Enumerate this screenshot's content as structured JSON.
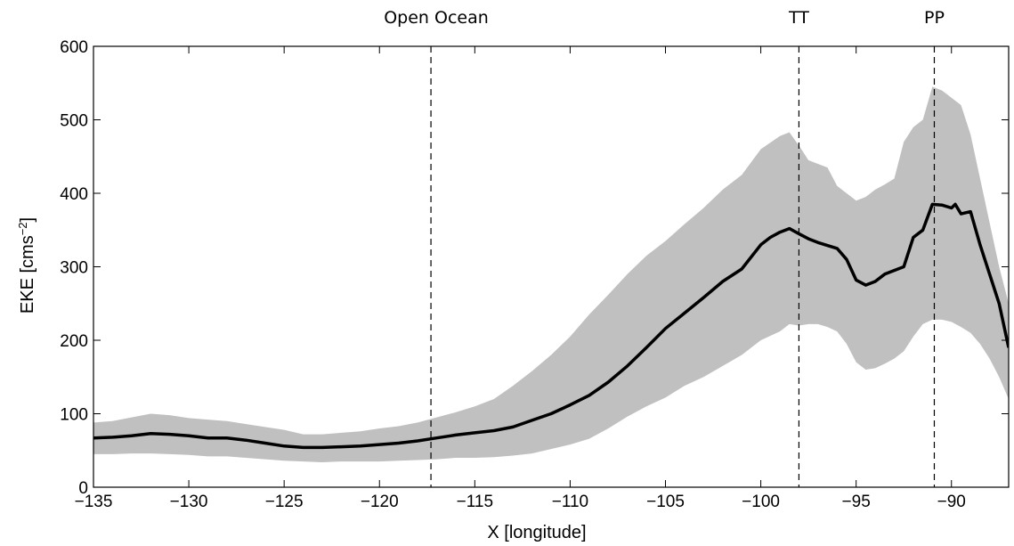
{
  "chart_data": {
    "type": "line",
    "title": "",
    "xlabel": "X [longitude]",
    "ylabel_main": "EKE [cms",
    "ylabel_sup": "−2",
    "ylabel_tail": "]",
    "xlim": [
      -135,
      -87
    ],
    "ylim": [
      0,
      600
    ],
    "xticks": [
      -135,
      -130,
      -125,
      -120,
      -115,
      -110,
      -105,
      -100,
      -95,
      -90
    ],
    "yticks": [
      0,
      100,
      200,
      300,
      400,
      500,
      600
    ],
    "xtick_labels": [
      "−135",
      "−130",
      "−125",
      "−120",
      "−115",
      "−110",
      "−105",
      "−100",
      "−95",
      "−90"
    ],
    "ytick_labels": [
      "0",
      "100",
      "200",
      "300",
      "400",
      "500",
      "600"
    ],
    "grid": false,
    "legend": "none",
    "vlines": [
      {
        "x": -117.3,
        "label": "Open Ocean"
      },
      {
        "x": -98,
        "label": "TT"
      },
      {
        "x": -90.9,
        "label": "PP"
      }
    ],
    "band_color": "#c0c0c0",
    "line_color": "#000000",
    "mean": {
      "x": [
        -135,
        -134,
        -133,
        -132,
        -131,
        -130,
        -129,
        -128,
        -127,
        -126,
        -125,
        -124,
        -123,
        -122,
        -121,
        -120,
        -119,
        -118,
        -117,
        -116,
        -115,
        -114,
        -113,
        -112,
        -111,
        -110,
        -109,
        -108,
        -107,
        -106,
        -105,
        -104,
        -103,
        -102,
        -101,
        -100,
        -99.5,
        -99,
        -98.5,
        -98,
        -97.5,
        -97,
        -96,
        -95.5,
        -95,
        -94.5,
        -94,
        -93.5,
        -93,
        -92.5,
        -92,
        -91.5,
        -91,
        -90.5,
        -90,
        -89.8,
        -89.5,
        -89,
        -88.5,
        -88,
        -87.5,
        -87
      ],
      "y": [
        67,
        68,
        70,
        73,
        72,
        70,
        67,
        67,
        64,
        60,
        56,
        54,
        54,
        55,
        56,
        58,
        60,
        63,
        67,
        71,
        74,
        77,
        82,
        91,
        100,
        112,
        125,
        143,
        165,
        190,
        216,
        237,
        258,
        280,
        297,
        330,
        340,
        347,
        352,
        345,
        338,
        333,
        325,
        310,
        282,
        275,
        280,
        290,
        295,
        300,
        340,
        350,
        385,
        384,
        380,
        385,
        372,
        375,
        330,
        290,
        250,
        190
      ]
    },
    "upper": {
      "x": [
        -135,
        -134,
        -133,
        -132,
        -131,
        -130,
        -129,
        -128,
        -127,
        -126,
        -125,
        -124,
        -123,
        -122,
        -121,
        -120,
        -119,
        -118,
        -117,
        -116,
        -115,
        -114,
        -113,
        -112,
        -111,
        -110,
        -109,
        -108,
        -107,
        -106,
        -105,
        -104,
        -103,
        -102,
        -101,
        -100,
        -99,
        -98.5,
        -98,
        -97.5,
        -97,
        -96.5,
        -96,
        -95.5,
        -95,
        -94.5,
        -94,
        -93.5,
        -93,
        -92.5,
        -92,
        -91.5,
        -91,
        -90.5,
        -90,
        -89.5,
        -89,
        -88.5,
        -88,
        -87.5,
        -87
      ],
      "y": [
        88,
        90,
        95,
        100,
        98,
        94,
        92,
        90,
        86,
        82,
        78,
        72,
        72,
        74,
        76,
        80,
        83,
        88,
        95,
        102,
        110,
        120,
        138,
        158,
        180,
        205,
        235,
        262,
        290,
        315,
        335,
        358,
        380,
        405,
        425,
        460,
        478,
        483,
        465,
        445,
        440,
        435,
        410,
        400,
        390,
        395,
        405,
        412,
        420,
        470,
        490,
        500,
        545,
        540,
        530,
        520,
        480,
        420,
        360,
        300,
        250
      ]
    },
    "lower": {
      "x": [
        -135,
        -134,
        -133,
        -132,
        -131,
        -130,
        -129,
        -128,
        -127,
        -126,
        -125,
        -124,
        -123,
        -122,
        -121,
        -120,
        -119,
        -118,
        -117,
        -116,
        -115,
        -114,
        -113,
        -112,
        -111,
        -110,
        -109,
        -108,
        -107,
        -106,
        -105,
        -104,
        -103,
        -102,
        -101,
        -100,
        -99,
        -98.5,
        -98,
        -97.5,
        -97,
        -96.5,
        -96,
        -95.5,
        -95,
        -94.5,
        -94,
        -93.5,
        -93,
        -92.5,
        -92,
        -91.5,
        -91,
        -90.5,
        -90,
        -89.5,
        -89,
        -88.5,
        -88,
        -87.5,
        -87
      ],
      "y": [
        45,
        45,
        46,
        46,
        45,
        44,
        42,
        42,
        40,
        38,
        36,
        35,
        34,
        35,
        35,
        35,
        36,
        37,
        38,
        40,
        40,
        41,
        43,
        46,
        52,
        58,
        66,
        80,
        96,
        110,
        122,
        138,
        150,
        165,
        180,
        200,
        212,
        222,
        220,
        222,
        222,
        218,
        212,
        195,
        170,
        160,
        162,
        168,
        175,
        185,
        205,
        222,
        228,
        228,
        225,
        218,
        210,
        195,
        175,
        150,
        120
      ]
    }
  }
}
